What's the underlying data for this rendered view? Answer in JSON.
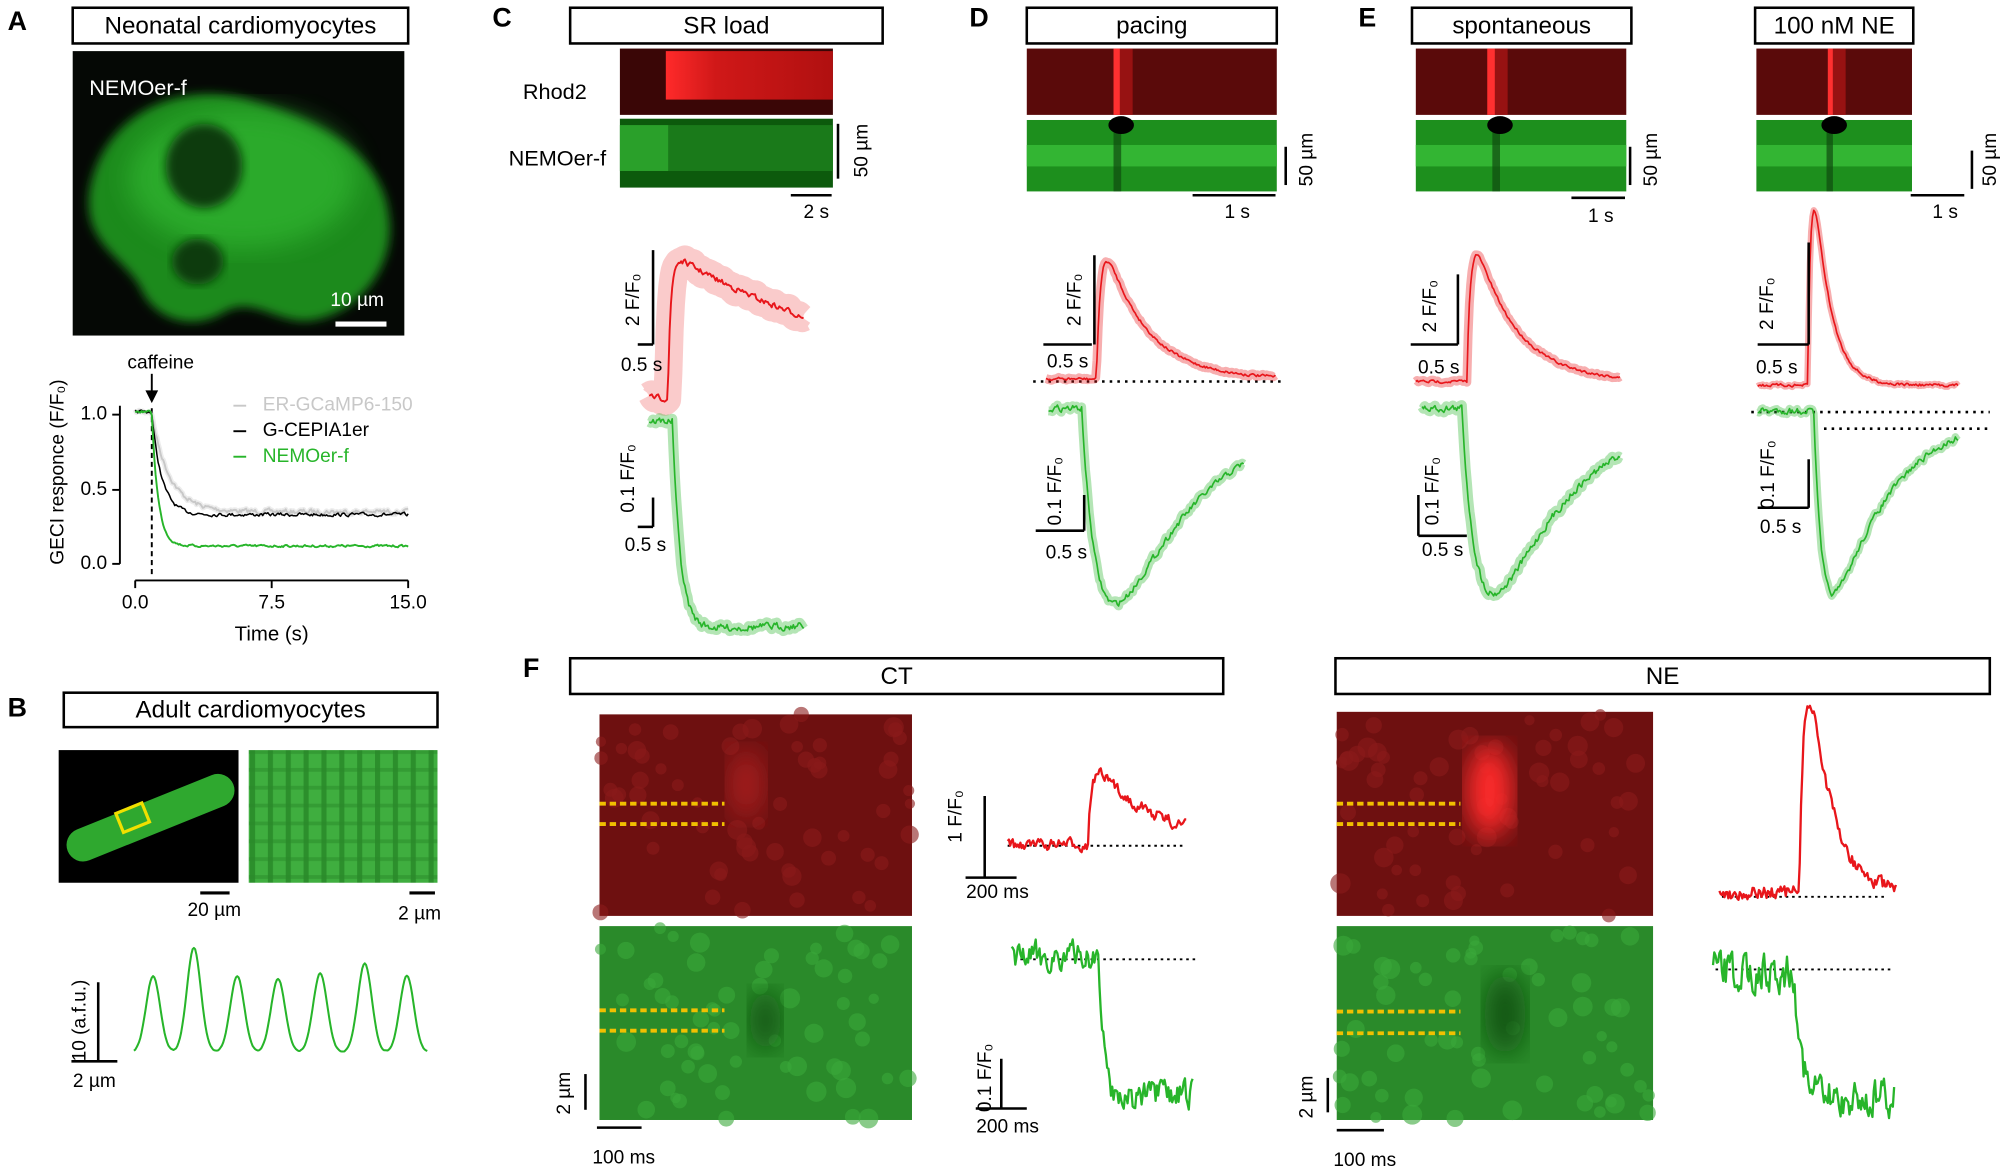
{
  "panel_a": {
    "letter": "A",
    "title": "Neonatal cardiomyocytes",
    "image_label": "NEMOer-f",
    "scale_bar": "10 µm",
    "annotation": "caffeine",
    "y_label": "GECI responce (F/F₀)",
    "x_label": "Time (s)",
    "x_ticks": [
      "0.0",
      "7.5",
      "15.0"
    ],
    "y_ticks": [
      "0.0",
      "0.5",
      "1.0"
    ],
    "legend": [
      "ER-GCaMP6-150",
      "G-CEPIA1er",
      "NEMOer-f"
    ]
  },
  "panel_b": {
    "letter": "B",
    "title": "Adult cardiomyocytes",
    "scale_bars": [
      "20 µm",
      "2 µm"
    ],
    "trace_scales": [
      "10 (a.f.u.)",
      "2 µm"
    ]
  },
  "panel_c": {
    "letter": "C",
    "title": "SR load",
    "row_labels": [
      "Rhod2",
      "NEMOer-f"
    ],
    "image_scales": [
      "50 µm",
      "2 s"
    ],
    "trace_scales": [
      "2 F/F₀",
      "0.5 s",
      "0.1 F/F₀",
      "0.5 s"
    ]
  },
  "panel_d": {
    "letter": "D",
    "title": "pacing",
    "image_scales": [
      "50 µm",
      "1 s"
    ],
    "trace_scales": [
      "2 F/F₀",
      "0.5 s",
      "0.1 F/F₀",
      "0.5 s"
    ]
  },
  "panel_e": {
    "letter": "E",
    "titles": [
      "spontaneous",
      "100 nM NE"
    ],
    "image_scales": [
      "50 µm",
      "1 s",
      "50 µm",
      "1 s"
    ],
    "trace_scales": [
      "2 F/F₀",
      "0.5 s",
      "0.1 F/F₀",
      "0.5 s",
      "2 F/F₀",
      "0.5 s",
      "0.1 F/F₀",
      "0.5 s"
    ]
  },
  "panel_f": {
    "letter": "F",
    "titles": [
      "CT",
      "NE"
    ],
    "image_scales": [
      "2 µm",
      "100 ms",
      "2 µm",
      "100 ms"
    ],
    "trace_scales": [
      "1 F/F₀",
      "200 ms",
      "0.1 F/F₀",
      "200 ms"
    ]
  }
}
